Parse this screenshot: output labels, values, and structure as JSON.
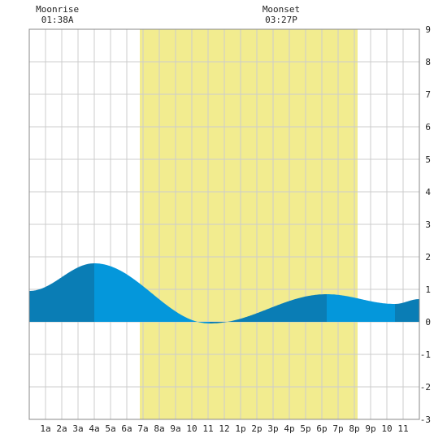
{
  "colors": {
    "daylight": "#f2ec8f",
    "tide_dark": "#0a7db5",
    "tide_light": "#0497db",
    "grid": "#cccccc",
    "frame": "#888888"
  },
  "annotations": {
    "moonrise_label": "Moonrise",
    "moonrise_time": "01:38A",
    "moonset_label": "Moonset",
    "moonset_time": "03:27P"
  },
  "chart_data": {
    "type": "area",
    "title": "",
    "xlabel": "",
    "ylabel": "",
    "x_range_hours": [
      0,
      24
    ],
    "ylim": [
      -3,
      9
    ],
    "x_tick_labels": [
      "1a",
      "2a",
      "3a",
      "4a",
      "5a",
      "6a",
      "7a",
      "8a",
      "9a",
      "10",
      "11",
      "12",
      "1p",
      "2p",
      "3p",
      "4p",
      "5p",
      "6p",
      "7p",
      "8p",
      "9p",
      "10",
      "11"
    ],
    "y_ticks": [
      9,
      8,
      7,
      6,
      5,
      4,
      3,
      2,
      1,
      0,
      -1,
      -2,
      -3
    ],
    "grid": true,
    "y_axis_side": "right",
    "daylight_hours": [
      6.8,
      20.2
    ],
    "moonrise_hour": 1.63,
    "moonset_hour": 15.45,
    "tide_events": [
      {
        "hour": 0.0,
        "height": 0.95
      },
      {
        "hour": 4.0,
        "height": 1.8
      },
      {
        "hour": 11.1,
        "height": -0.05
      },
      {
        "hour": 18.3,
        "height": 0.85
      },
      {
        "hour": 22.5,
        "height": 0.55
      },
      {
        "hour": 24.0,
        "height": 0.7
      }
    ],
    "shade_change_hours": [
      4.0,
      11.1,
      18.3,
      22.5
    ]
  }
}
